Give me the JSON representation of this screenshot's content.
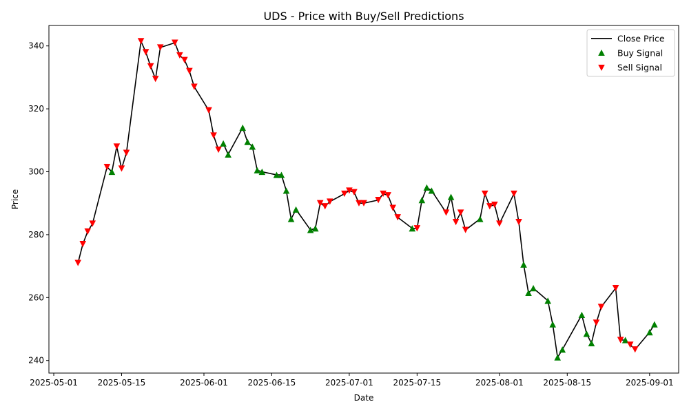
{
  "chart_data": {
    "type": "line",
    "title": "UDS - Price with Buy/Sell Predictions",
    "xlabel": "Date",
    "ylabel": "Price",
    "x_ticks": [
      "2025-05-01",
      "2025-05-15",
      "2025-06-01",
      "2025-06-15",
      "2025-07-01",
      "2025-07-15",
      "2025-08-01",
      "2025-08-15",
      "2025-09-01"
    ],
    "y_ticks": [
      240,
      260,
      280,
      300,
      320,
      340
    ],
    "xlim": [
      "2025-04-30",
      "2025-09-07"
    ],
    "ylim": [
      236,
      346.5
    ],
    "legend_position": "top-right",
    "grid": false,
    "series": [
      {
        "name": "Close Price",
        "kind": "line",
        "color": "#000000"
      },
      {
        "name": "Buy Signal",
        "kind": "scatter",
        "marker": "triangle-up",
        "color": "#008000"
      },
      {
        "name": "Sell Signal",
        "kind": "scatter",
        "marker": "triangle-down",
        "color": "#ff0000"
      }
    ],
    "points": [
      {
        "date": "2025-05-06",
        "price": 271.0,
        "signal": "sell"
      },
      {
        "date": "2025-05-07",
        "price": 277.0,
        "signal": "sell"
      },
      {
        "date": "2025-05-08",
        "price": 281.0,
        "signal": "sell"
      },
      {
        "date": "2025-05-09",
        "price": 283.5,
        "signal": "sell"
      },
      {
        "date": "2025-05-12",
        "price": 301.5,
        "signal": "sell"
      },
      {
        "date": "2025-05-13",
        "price": 300.0,
        "signal": "buy"
      },
      {
        "date": "2025-05-14",
        "price": 308.0,
        "signal": "sell"
      },
      {
        "date": "2025-05-15",
        "price": 301.0,
        "signal": "sell"
      },
      {
        "date": "2025-05-16",
        "price": 306.0,
        "signal": "sell"
      },
      {
        "date": "2025-05-19",
        "price": 341.5,
        "signal": "sell"
      },
      {
        "date": "2025-05-20",
        "price": 338.0,
        "signal": "sell"
      },
      {
        "date": "2025-05-21",
        "price": 333.5,
        "signal": "sell"
      },
      {
        "date": "2025-05-22",
        "price": 329.5,
        "signal": "sell"
      },
      {
        "date": "2025-05-23",
        "price": 339.5,
        "signal": "sell"
      },
      {
        "date": "2025-05-26",
        "price": 341.0,
        "signal": "sell"
      },
      {
        "date": "2025-05-27",
        "price": 337.0,
        "signal": "sell"
      },
      {
        "date": "2025-05-28",
        "price": 335.5,
        "signal": "sell"
      },
      {
        "date": "2025-05-29",
        "price": 332.0,
        "signal": "sell"
      },
      {
        "date": "2025-05-30",
        "price": 327.0,
        "signal": "sell"
      },
      {
        "date": "2025-06-02",
        "price": 319.5,
        "signal": "sell"
      },
      {
        "date": "2025-06-03",
        "price": 311.5,
        "signal": "sell"
      },
      {
        "date": "2025-06-04",
        "price": 307.0,
        "signal": "sell"
      },
      {
        "date": "2025-06-05",
        "price": 309.0,
        "signal": "buy"
      },
      {
        "date": "2025-06-06",
        "price": 305.5,
        "signal": "buy"
      },
      {
        "date": "2025-06-09",
        "price": 314.0,
        "signal": "buy"
      },
      {
        "date": "2025-06-10",
        "price": 309.5,
        "signal": "buy"
      },
      {
        "date": "2025-06-11",
        "price": 308.0,
        "signal": "buy"
      },
      {
        "date": "2025-06-12",
        "price": 300.5,
        "signal": "buy"
      },
      {
        "date": "2025-06-13",
        "price": 300.0,
        "signal": "buy"
      },
      {
        "date": "2025-06-16",
        "price": 299.0,
        "signal": "buy"
      },
      {
        "date": "2025-06-17",
        "price": 299.0,
        "signal": "buy"
      },
      {
        "date": "2025-06-18",
        "price": 294.0,
        "signal": "buy"
      },
      {
        "date": "2025-06-19",
        "price": 285.0,
        "signal": "buy"
      },
      {
        "date": "2025-06-20",
        "price": 288.0,
        "signal": "buy"
      },
      {
        "date": "2025-06-23",
        "price": 281.5,
        "signal": "buy"
      },
      {
        "date": "2025-06-24",
        "price": 282.0,
        "signal": "buy"
      },
      {
        "date": "2025-06-25",
        "price": 290.0,
        "signal": "sell"
      },
      {
        "date": "2025-06-26",
        "price": 289.0,
        "signal": "sell"
      },
      {
        "date": "2025-06-27",
        "price": 290.5,
        "signal": "sell"
      },
      {
        "date": "2025-06-30",
        "price": 293.0,
        "signal": "sell"
      },
      {
        "date": "2025-07-01",
        "price": 294.0,
        "signal": "sell"
      },
      {
        "date": "2025-07-02",
        "price": 293.5,
        "signal": "sell"
      },
      {
        "date": "2025-07-03",
        "price": 290.0,
        "signal": "sell"
      },
      {
        "date": "2025-07-04",
        "price": 290.0,
        "signal": "sell"
      },
      {
        "date": "2025-07-07",
        "price": 291.0,
        "signal": "sell"
      },
      {
        "date": "2025-07-08",
        "price": 293.0,
        "signal": "sell"
      },
      {
        "date": "2025-07-09",
        "price": 292.5,
        "signal": "sell"
      },
      {
        "date": "2025-07-10",
        "price": 288.5,
        "signal": "sell"
      },
      {
        "date": "2025-07-11",
        "price": 285.5,
        "signal": "sell"
      },
      {
        "date": "2025-07-14",
        "price": 282.0,
        "signal": "buy"
      },
      {
        "date": "2025-07-15",
        "price": 282.0,
        "signal": "sell"
      },
      {
        "date": "2025-07-16",
        "price": 291.0,
        "signal": "buy"
      },
      {
        "date": "2025-07-17",
        "price": 295.0,
        "signal": "buy"
      },
      {
        "date": "2025-07-18",
        "price": 294.0,
        "signal": "buy"
      },
      {
        "date": "2025-07-21",
        "price": 287.0,
        "signal": "sell"
      },
      {
        "date": "2025-07-22",
        "price": 292.0,
        "signal": "buy"
      },
      {
        "date": "2025-07-23",
        "price": 284.0,
        "signal": "sell"
      },
      {
        "date": "2025-07-24",
        "price": 287.0,
        "signal": "sell"
      },
      {
        "date": "2025-07-25",
        "price": 281.5,
        "signal": "sell"
      },
      {
        "date": "2025-07-28",
        "price": 285.0,
        "signal": "buy"
      },
      {
        "date": "2025-07-29",
        "price": 293.0,
        "signal": "sell"
      },
      {
        "date": "2025-07-30",
        "price": 289.0,
        "signal": "sell"
      },
      {
        "date": "2025-07-31",
        "price": 289.5,
        "signal": "sell"
      },
      {
        "date": "2025-08-01",
        "price": 283.5,
        "signal": "sell"
      },
      {
        "date": "2025-08-04",
        "price": 293.0,
        "signal": "sell"
      },
      {
        "date": "2025-08-05",
        "price": 284.0,
        "signal": "sell"
      },
      {
        "date": "2025-08-06",
        "price": 270.5,
        "signal": "buy"
      },
      {
        "date": "2025-08-07",
        "price": 261.5,
        "signal": "buy"
      },
      {
        "date": "2025-08-08",
        "price": 263.0,
        "signal": "buy"
      },
      {
        "date": "2025-08-11",
        "price": 259.0,
        "signal": "buy"
      },
      {
        "date": "2025-08-12",
        "price": 251.5,
        "signal": "buy"
      },
      {
        "date": "2025-08-13",
        "price": 241.0,
        "signal": "buy"
      },
      {
        "date": "2025-08-14",
        "price": 243.5,
        "signal": "buy"
      },
      {
        "date": "2025-08-18",
        "price": 254.5,
        "signal": "buy"
      },
      {
        "date": "2025-08-19",
        "price": 248.5,
        "signal": "buy"
      },
      {
        "date": "2025-08-20",
        "price": 245.5,
        "signal": "buy"
      },
      {
        "date": "2025-08-21",
        "price": 252.0,
        "signal": "sell"
      },
      {
        "date": "2025-08-22",
        "price": 257.0,
        "signal": "sell"
      },
      {
        "date": "2025-08-25",
        "price": 263.0,
        "signal": "sell"
      },
      {
        "date": "2025-08-26",
        "price": 246.5,
        "signal": "sell"
      },
      {
        "date": "2025-08-27",
        "price": 246.5,
        "signal": "buy"
      },
      {
        "date": "2025-08-28",
        "price": 245.0,
        "signal": "sell"
      },
      {
        "date": "2025-08-29",
        "price": 243.5,
        "signal": "sell"
      },
      {
        "date": "2025-09-01",
        "price": 249.0,
        "signal": "buy"
      },
      {
        "date": "2025-09-02",
        "price": 251.5,
        "signal": "buy"
      }
    ]
  }
}
